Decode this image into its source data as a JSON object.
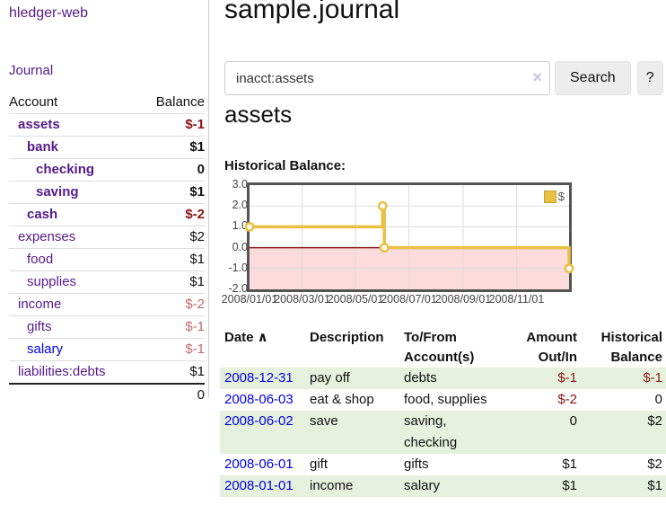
{
  "sidebar": {
    "brand": "hledger-web",
    "nav_journal": "Journal",
    "accounts_table": {
      "headers": {
        "account": "Account",
        "balance": "Balance"
      },
      "rows": [
        {
          "name": "assets",
          "indent": 0,
          "bold": true,
          "balance": "$-1",
          "balance_style": "negative-strong"
        },
        {
          "name": "bank",
          "indent": 1,
          "bold": true,
          "balance": "$1",
          "balance_style": "plain-strong"
        },
        {
          "name": "checking",
          "indent": 2,
          "bold": true,
          "balance": "0",
          "balance_style": "plain-strong"
        },
        {
          "name": "saving",
          "indent": 2,
          "bold": true,
          "balance": "$1",
          "balance_style": "plain-strong"
        },
        {
          "name": "cash",
          "indent": 1,
          "bold": true,
          "balance": "$-2",
          "balance_style": "negative-strong"
        },
        {
          "name": "expenses",
          "indent": 0,
          "bold": false,
          "balance": "$2",
          "balance_style": "plain"
        },
        {
          "name": "food",
          "indent": 1,
          "bold": false,
          "balance": "$1",
          "balance_style": "plain"
        },
        {
          "name": "supplies",
          "indent": 1,
          "bold": false,
          "balance": "$1",
          "balance_style": "plain"
        },
        {
          "name": "income",
          "indent": 0,
          "bold": false,
          "balance": "$-2",
          "balance_style": "negative-soft"
        },
        {
          "name": "gifts",
          "indent": 1,
          "bold": false,
          "balance": "$-1",
          "balance_style": "negative-soft"
        },
        {
          "name": "salary",
          "indent": 1,
          "bold": false,
          "balance": "$-1",
          "balance_style": "negative-soft",
          "link_color": "blue"
        },
        {
          "name": "liabilities:debts",
          "indent": 0,
          "bold": false,
          "balance": "$1",
          "balance_style": "plain"
        }
      ],
      "total": "0"
    }
  },
  "main": {
    "title": "sample.journal",
    "search": {
      "value": "inacct:assets",
      "clear_icon": "×",
      "button_label": "Search",
      "help_label": "?"
    },
    "account_heading": "assets",
    "chart_heading": "Historical Balance:"
  },
  "chart_data": {
    "type": "line",
    "step": true,
    "title": "Historical Balance",
    "series": [
      {
        "name": "$",
        "color": "#e9c043",
        "points": [
          {
            "date": "2008-01-01",
            "value": 1
          },
          {
            "date": "2008-06-01",
            "value": 2
          },
          {
            "date": "2008-06-03",
            "value": 0
          },
          {
            "date": "2008-12-31",
            "value": -1
          }
        ]
      }
    ],
    "x_ticks": [
      "2008/01/01",
      "2008/03/01",
      "2008/05/01",
      "2008/07/01",
      "2008/09/01",
      "2008/11/01"
    ],
    "y_ticks": [
      "3.0",
      "2.0",
      "1.0",
      "0.0",
      "-1.0",
      "-2.0"
    ],
    "xlim": [
      "2008-01-01",
      "2008-12-31"
    ],
    "ylim": [
      -2,
      3
    ],
    "grid": true,
    "legend_position": "top-right",
    "legend": "$"
  },
  "register": {
    "columns": [
      {
        "line1": "Date",
        "line2": "",
        "align": "left",
        "sort_icon": "∧"
      },
      {
        "line1": "Description",
        "line2": "",
        "align": "left"
      },
      {
        "line1": "To/From",
        "line2": "Account(s)",
        "align": "left"
      },
      {
        "line1": "Amount",
        "line2": "Out/In",
        "align": "right"
      },
      {
        "line1": "Historical",
        "line2": "Balance",
        "align": "right"
      }
    ],
    "rows": [
      {
        "date": "2008-12-31",
        "description": "pay off",
        "accounts": "debts",
        "amount": "$-1",
        "balance": "$-1"
      },
      {
        "date": "2008-06-03",
        "description": "eat & shop",
        "accounts": "food, supplies",
        "amount": "$-2",
        "balance": "0"
      },
      {
        "date": "2008-06-02",
        "description": "save",
        "accounts": "saving, checking",
        "amount": "0",
        "balance": "$2"
      },
      {
        "date": "2008-06-01",
        "description": "gift",
        "accounts": "gifts",
        "amount": "$1",
        "balance": "$2"
      },
      {
        "date": "2008-01-01",
        "description": "income",
        "accounts": "salary",
        "amount": "$1",
        "balance": "$1"
      }
    ]
  },
  "colors": {
    "link_purple": "#551a8b",
    "link_blue": "#0000e6",
    "negative_strong": "#8b1414",
    "negative_soft": "#c46a6a",
    "stripe_green": "#e5f1dd",
    "series_yellow": "#e9c043",
    "chart_border": "#545454",
    "grid_line": "#dcdcdc",
    "zero_line": "#8b1a1a",
    "negative_region": "#fbdbdb",
    "button_bg": "#ececec",
    "input_border": "#cccccc",
    "separator": "#cccccc",
    "row_border": "#dddddd",
    "clear_icon": "#cdc2dd"
  }
}
